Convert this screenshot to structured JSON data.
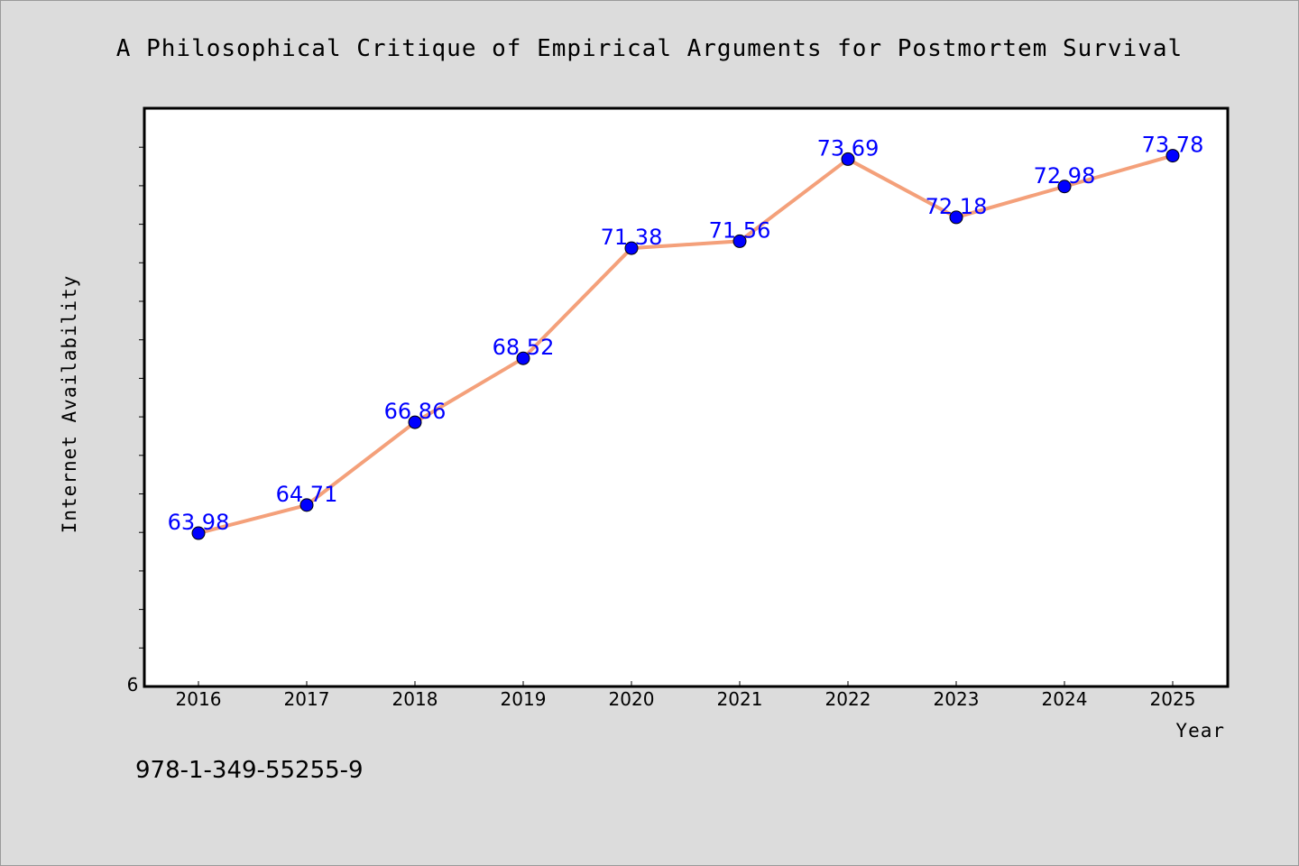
{
  "chart_data": {
    "type": "line",
    "title": "A Philosophical Critique of Empirical Arguments for Postmortem Survival",
    "xlabel": "Year",
    "ylabel": "Internet Availability",
    "categories": [
      "2016",
      "2017",
      "2018",
      "2019",
      "2020",
      "2021",
      "2022",
      "2023",
      "2024",
      "2025"
    ],
    "series": [
      {
        "values": [
          63.98,
          64.71,
          66.86,
          68.52,
          71.38,
          71.56,
          73.69,
          72.18,
          72.98,
          73.78
        ],
        "data_labels": [
          "63.98",
          "64.71",
          "66.86",
          "68.52",
          "71.38",
          "71.56",
          "73.69",
          "72.18",
          "72.98",
          "73.78"
        ]
      }
    ],
    "y_tick_labels": [
      "6"
    ],
    "ylim": [
      60,
      75
    ],
    "grid": false,
    "legend": "none",
    "colors": {
      "line": "#f4a07a",
      "marker": "#0000ff",
      "data_label": "#0000ff",
      "plot_background": "#ffffff",
      "figure_background": "#dcdcdc"
    }
  },
  "footer": {
    "isbn": "978-1-349-55255-9"
  }
}
